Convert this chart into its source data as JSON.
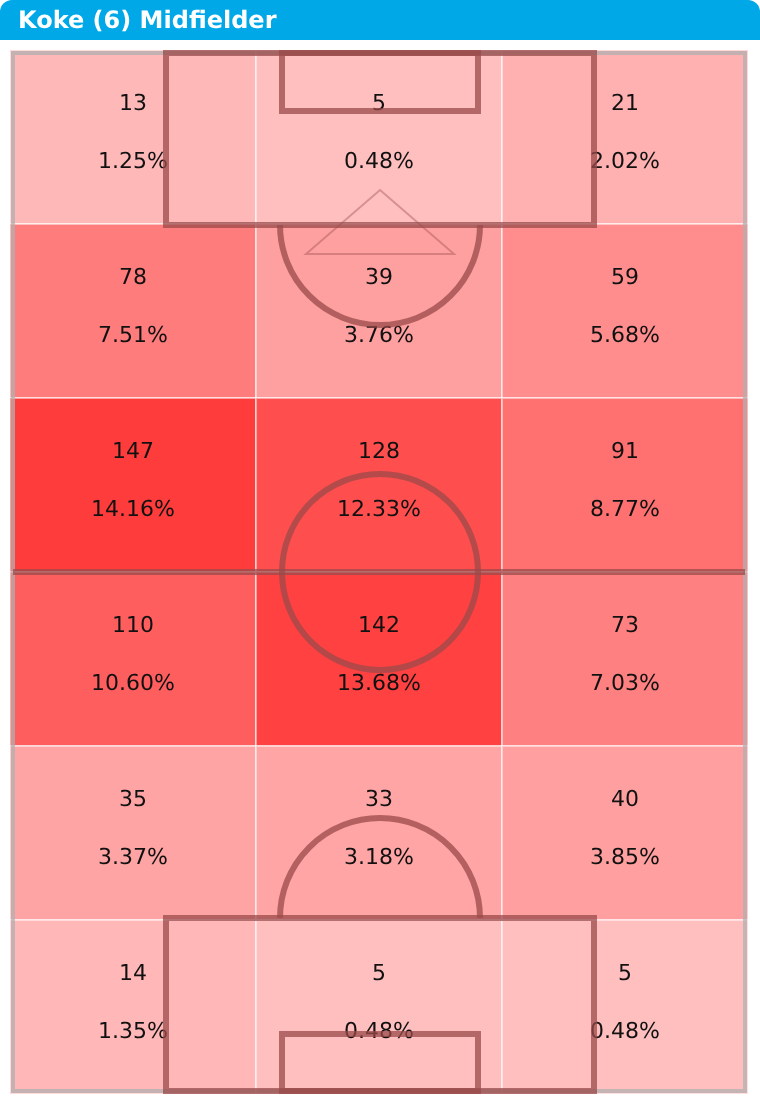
{
  "chart_data": {
    "type": "heatmap",
    "title": "Koke (6) Midfielder",
    "categories": [
      null,
      null,
      null
    ],
    "y_categories": [
      null,
      null,
      null,
      null,
      null,
      null
    ],
    "cells": [
      [
        13,
        5,
        21
      ],
      [
        78,
        39,
        59
      ],
      [
        147,
        128,
        91
      ],
      [
        110,
        142,
        73
      ],
      [
        35,
        33,
        40
      ],
      [
        14,
        5,
        5
      ]
    ],
    "data_labels": true,
    "annotations": [
      "1.25%",
      "0.48%",
      "2.02%",
      "7.51%",
      "3.76%",
      "5.68%",
      "14.16%",
      "12.33%",
      "8.77%",
      "10.60%",
      "13.68%",
      "7.03%",
      "3.37%",
      "3.18%",
      "3.85%",
      "1.35%",
      "0.48%",
      "0.48%"
    ]
  }
}
